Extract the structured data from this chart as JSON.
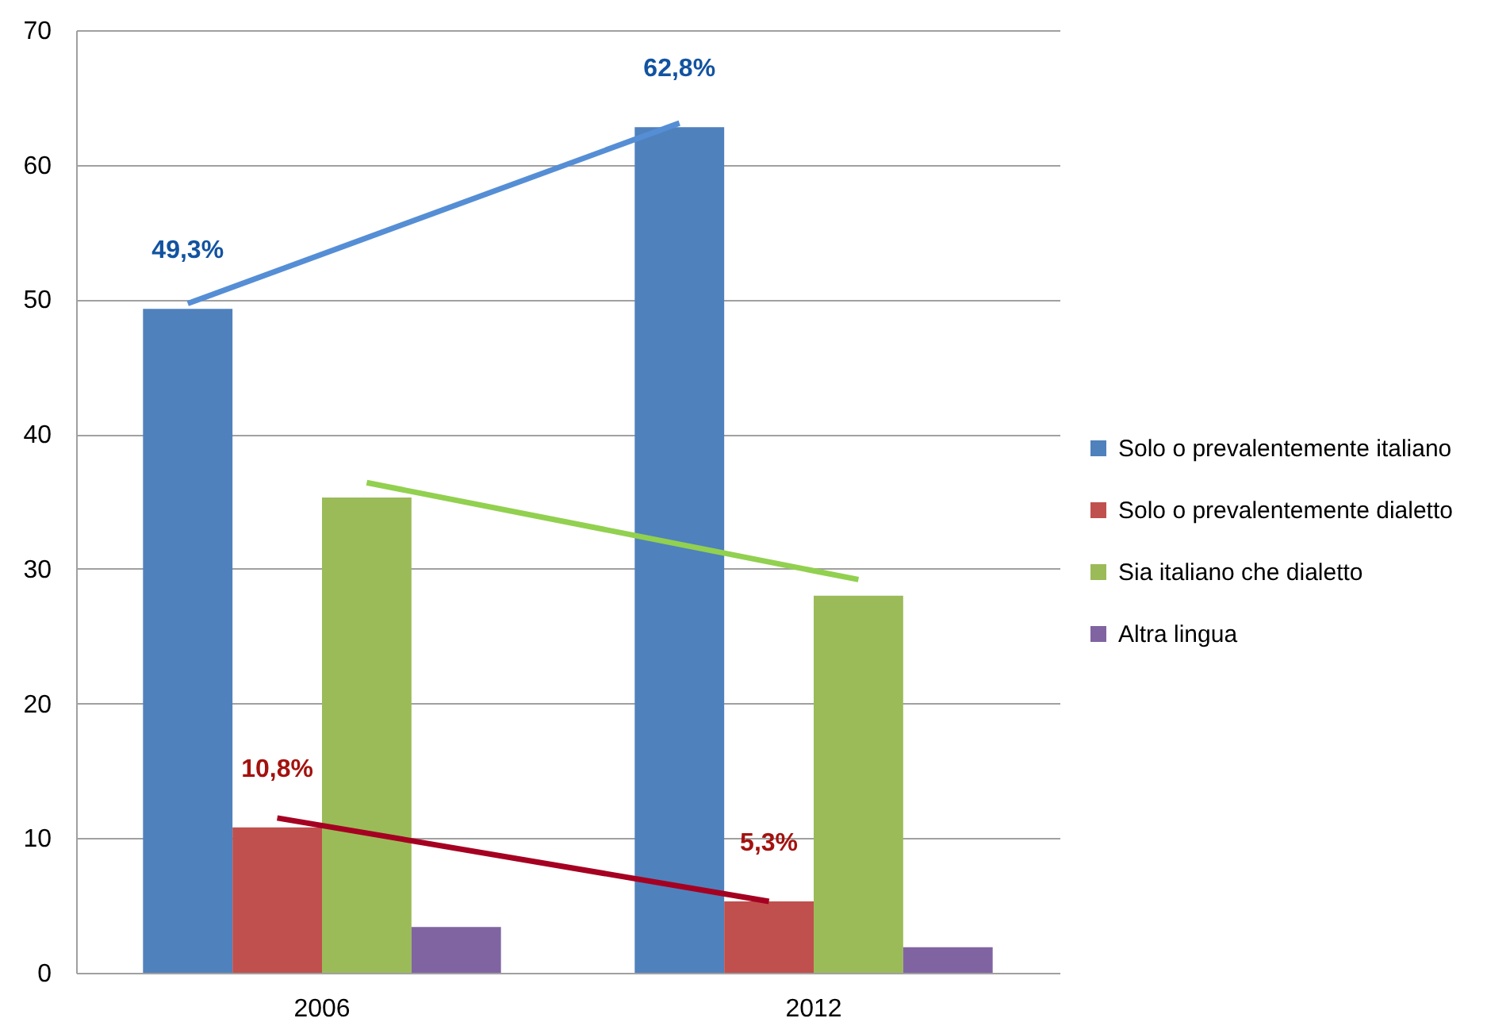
{
  "chart_data": {
    "type": "bar",
    "categories": [
      "2006",
      "2012"
    ],
    "series": [
      {
        "name": "Solo o prevalentemente italiano",
        "color": "#4f81bd",
        "values": [
          49.3,
          62.8
        ],
        "value_labels": [
          "49,3%",
          "62,8%"
        ]
      },
      {
        "name": "Solo o prevalentemente dialetto",
        "color": "#c0504d",
        "values": [
          10.8,
          5.3
        ],
        "value_labels": [
          "10,8%",
          "5,3%"
        ]
      },
      {
        "name": "Sia italiano che dialetto",
        "color": "#9bbb59",
        "values": [
          35.3,
          28.0
        ]
      },
      {
        "name": "Altra lingua",
        "color": "#8064a2",
        "values": [
          3.4,
          1.9
        ]
      },
      {
        "type": "line",
        "color": "#558ed5",
        "values": [
          49.7,
          63.1
        ]
      },
      {
        "type": "line",
        "color": "#a50021",
        "values": [
          11.5,
          5.3
        ]
      },
      {
        "type": "line",
        "color": "#92d050",
        "values": [
          36.4,
          29.2
        ]
      }
    ],
    "ylim": [
      0,
      70
    ],
    "yticks": [
      0,
      10,
      20,
      30,
      40,
      50,
      60,
      70
    ],
    "grid": "y",
    "legend": "right"
  }
}
